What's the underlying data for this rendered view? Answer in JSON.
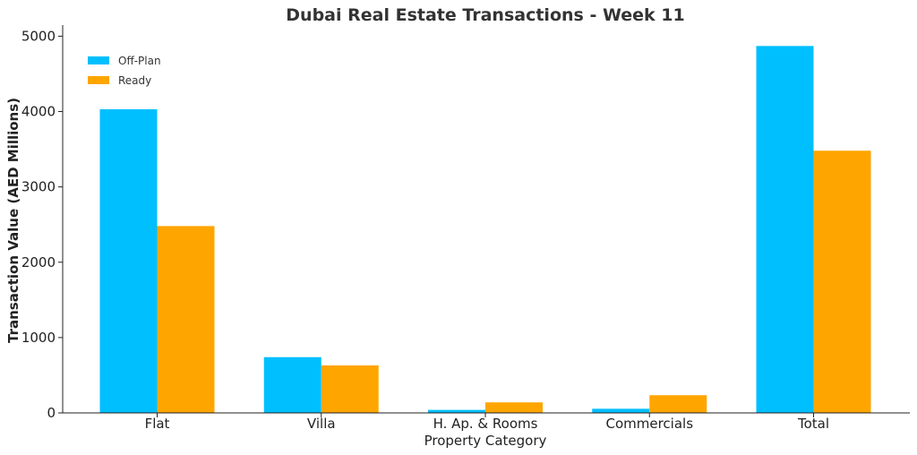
{
  "chart_data": {
    "type": "bar",
    "title": "Dubai Real Estate Transactions - Week 11",
    "xlabel": "Property Category",
    "ylabel": "Transaction Value (AED Millions)",
    "categories": [
      "Flat",
      "Villa",
      "H. Ap. & Rooms",
      "Commercials",
      "Total"
    ],
    "series": [
      {
        "name": "Off-Plan",
        "color": "#00bfff",
        "values": [
          4030,
          740,
          40,
          55,
          4870
        ]
      },
      {
        "name": "Ready",
        "color": "#ffa500",
        "values": [
          2480,
          630,
          140,
          235,
          3480
        ]
      }
    ],
    "ylim": [
      0,
      5100
    ],
    "yticks": [
      0,
      1000,
      2000,
      3000,
      4000,
      5000
    ],
    "grid": false,
    "legend": "top-left"
  }
}
